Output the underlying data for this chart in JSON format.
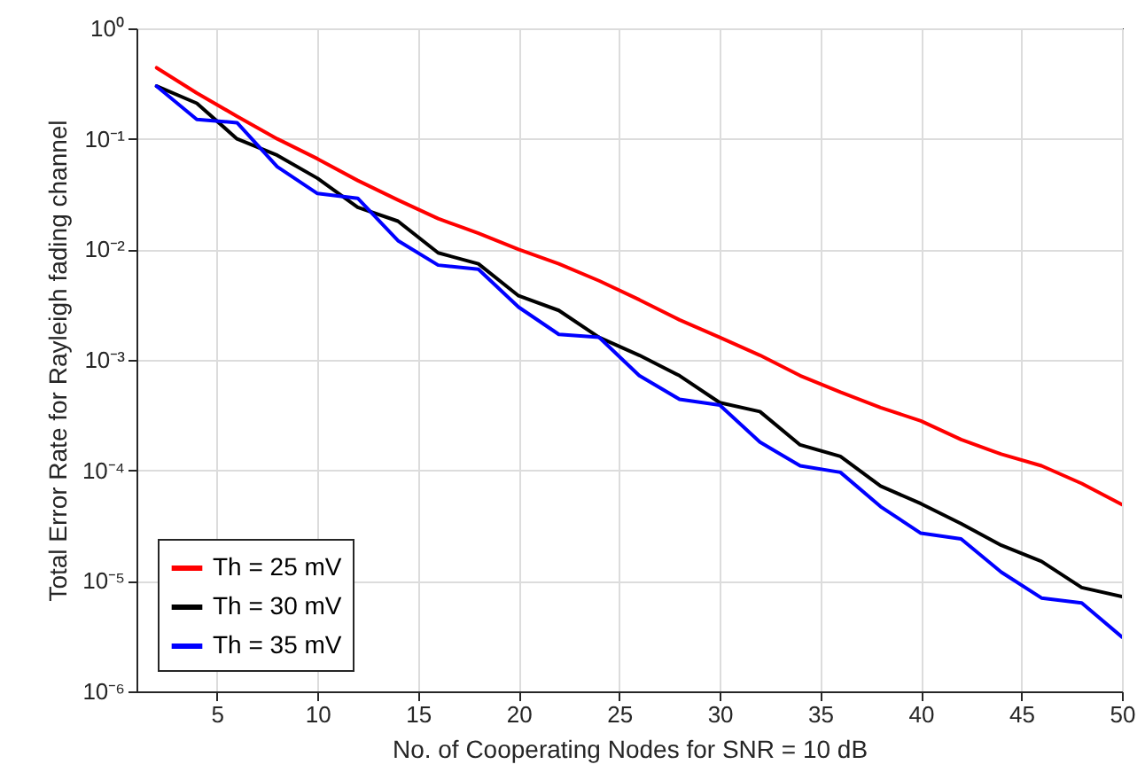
{
  "chart_data": {
    "type": "line",
    "xlabel": "No. of Cooperating Nodes for SNR = 10 dB",
    "ylabel": "Total Error Rate for Rayleigh fading channel",
    "x": [
      2,
      4,
      6,
      8,
      10,
      12,
      14,
      16,
      18,
      20,
      22,
      24,
      26,
      28,
      30,
      32,
      34,
      36,
      38,
      40,
      42,
      44,
      46,
      48,
      50
    ],
    "series": [
      {
        "name": "Th = 25 mV",
        "color": "#ff0000",
        "values": [
          0.44,
          0.26,
          0.16,
          0.1,
          0.066,
          0.042,
          0.028,
          0.019,
          0.014,
          0.01,
          0.0074,
          0.0052,
          0.0035,
          0.0023,
          0.0016,
          0.0011,
          0.00072,
          0.00051,
          0.00037,
          0.00028,
          0.00019,
          0.00014,
          0.00011,
          7.6e-05,
          4.9e-05
        ]
      },
      {
        "name": "Th = 30 mV",
        "color": "#000000",
        "values": [
          0.3,
          0.21,
          0.1,
          0.071,
          0.044,
          0.024,
          0.018,
          0.0093,
          0.0074,
          0.0038,
          0.0028,
          0.0016,
          0.0011,
          0.00072,
          0.00041,
          0.00034,
          0.00017,
          0.000134,
          7.2e-05,
          5e-05,
          3.3e-05,
          2.1e-05,
          1.5e-05,
          8.7e-06,
          7.2e-06
        ]
      },
      {
        "name": "Th = 35 mV",
        "color": "#0000ff",
        "values": [
          0.3,
          0.15,
          0.14,
          0.056,
          0.032,
          0.029,
          0.012,
          0.0072,
          0.0066,
          0.003,
          0.0017,
          0.0016,
          0.00072,
          0.00044,
          0.00039,
          0.00018,
          0.00011,
          9.6e-05,
          4.7e-05,
          2.7e-05,
          2.4e-05,
          1.2e-05,
          7e-06,
          6.3e-06,
          3.1e-06
        ]
      }
    ],
    "xlim": [
      1,
      50
    ],
    "xticks": [
      5,
      10,
      15,
      20,
      25,
      30,
      35,
      40,
      45,
      50
    ],
    "ylim": [
      1e-06,
      1
    ],
    "yticks": [
      {
        "value": 1e-06,
        "label": "10⁻⁶"
      },
      {
        "value": 1e-05,
        "label": "10⁻⁵"
      },
      {
        "value": 0.0001,
        "label": "10⁻⁴"
      },
      {
        "value": 0.001,
        "label": "10⁻³"
      },
      {
        "value": 0.01,
        "label": "10⁻²"
      },
      {
        "value": 0.1,
        "label": "10⁻¹"
      },
      {
        "value": 1,
        "label": "10⁰"
      }
    ],
    "log": "y",
    "grid": true,
    "legend": "bottom left",
    "line_style": "solid",
    "marker": "none"
  }
}
